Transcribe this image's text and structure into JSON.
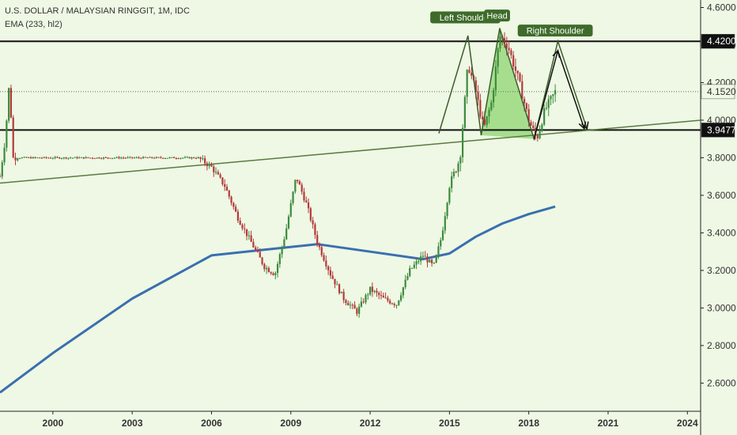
{
  "header": {
    "title": "U.S. DOLLAR / MALAYSIAN RINGGIT, 1M, IDC",
    "indicator": "EMA (233, hl2)"
  },
  "colors": {
    "background": "#eef8e4",
    "up_candle": "#3d8a3d",
    "down_candle": "#b33a3a",
    "ema": "#3a6fb0",
    "trendline": "#5a7a3e",
    "pattern_fill": "#7fcf5f"
  },
  "chart_data": {
    "type": "candlestick",
    "title": "U.S. DOLLAR / MALAYSIAN RINGGIT, 1M, IDC",
    "xlabel": "",
    "ylabel": "",
    "x_ticks": [
      "2000",
      "2003",
      "2006",
      "2009",
      "2012",
      "2015",
      "2018",
      "2021",
      "2024"
    ],
    "y_ticks": [
      "4.6000",
      "4.4000",
      "4.2000",
      "4.0000",
      "3.8000",
      "3.6000",
      "3.4000",
      "3.2000",
      "3.0000",
      "2.8000",
      "2.6000"
    ],
    "xlim": [
      1998.0,
      2024.5
    ],
    "ylim": [
      2.45,
      4.64
    ],
    "price_path": [
      [
        1998.0,
        3.7
      ],
      [
        1998.2,
        3.9
      ],
      [
        1998.35,
        4.2
      ],
      [
        1998.5,
        3.8
      ],
      [
        2005.5,
        3.8
      ],
      [
        2006.0,
        3.75
      ],
      [
        2006.5,
        3.65
      ],
      [
        2007.0,
        3.48
      ],
      [
        2007.5,
        3.35
      ],
      [
        2008.0,
        3.22
      ],
      [
        2008.4,
        3.18
      ],
      [
        2008.8,
        3.4
      ],
      [
        2009.2,
        3.7
      ],
      [
        2009.6,
        3.55
      ],
      [
        2010.0,
        3.35
      ],
      [
        2010.5,
        3.18
      ],
      [
        2011.0,
        3.05
      ],
      [
        2011.5,
        2.98
      ],
      [
        2012.0,
        3.1
      ],
      [
        2012.5,
        3.05
      ],
      [
        2013.0,
        3.02
      ],
      [
        2013.5,
        3.2
      ],
      [
        2014.0,
        3.28
      ],
      [
        2014.4,
        3.22
      ],
      [
        2014.7,
        3.38
      ],
      [
        2015.0,
        3.65
      ],
      [
        2015.4,
        3.8
      ],
      [
        2015.7,
        4.3
      ],
      [
        2016.0,
        4.15
      ],
      [
        2016.3,
        3.95
      ],
      [
        2016.6,
        4.1
      ],
      [
        2016.9,
        4.45
      ],
      [
        2017.2,
        4.4
      ],
      [
        2017.6,
        4.22
      ],
      [
        2018.0,
        4.0
      ],
      [
        2018.3,
        3.9
      ],
      [
        2018.6,
        4.05
      ],
      [
        2019.0,
        4.15
      ]
    ],
    "ema_233": [
      [
        1998.0,
        2.55
      ],
      [
        2000.0,
        2.76
      ],
      [
        2003.0,
        3.05
      ],
      [
        2006.0,
        3.28
      ],
      [
        2008.0,
        3.31
      ],
      [
        2010.0,
        3.34
      ],
      [
        2012.0,
        3.3
      ],
      [
        2014.0,
        3.26
      ],
      [
        2015.0,
        3.29
      ],
      [
        2016.0,
        3.38
      ],
      [
        2017.0,
        3.45
      ],
      [
        2018.0,
        3.5
      ],
      [
        2019.0,
        3.54
      ]
    ],
    "horizontal_levels": [
      4.42,
      3.9477
    ],
    "dotted_level": 4.152,
    "price_labels": [
      "4.4200",
      "4.1520",
      "3.9477"
    ],
    "annotations": [
      "Left Shoulder",
      "Head",
      "Right Shoulder"
    ],
    "trendline": [
      [
        1998.0,
        3.665
      ],
      [
        2024.5,
        4.0
      ]
    ],
    "pattern_lines": [
      [
        [
          2014.6,
          3.93
        ],
        [
          2015.7,
          4.45
        ],
        [
          2016.2,
          3.92
        ],
        [
          2016.9,
          4.49
        ],
        [
          2018.2,
          3.9
        ],
        [
          2019.1,
          4.42
        ],
        [
          2020.2,
          3.955
        ]
      ],
      [
        [
          2018.2,
          3.9
        ],
        [
          2019.1,
          4.37
        ],
        [
          2020.1,
          3.955
        ]
      ]
    ],
    "head_fill": [
      [
        2016.2,
        3.92
      ],
      [
        2016.9,
        4.49
      ],
      [
        2018.2,
        3.9
      ]
    ],
    "grid": false,
    "legend": "none"
  }
}
